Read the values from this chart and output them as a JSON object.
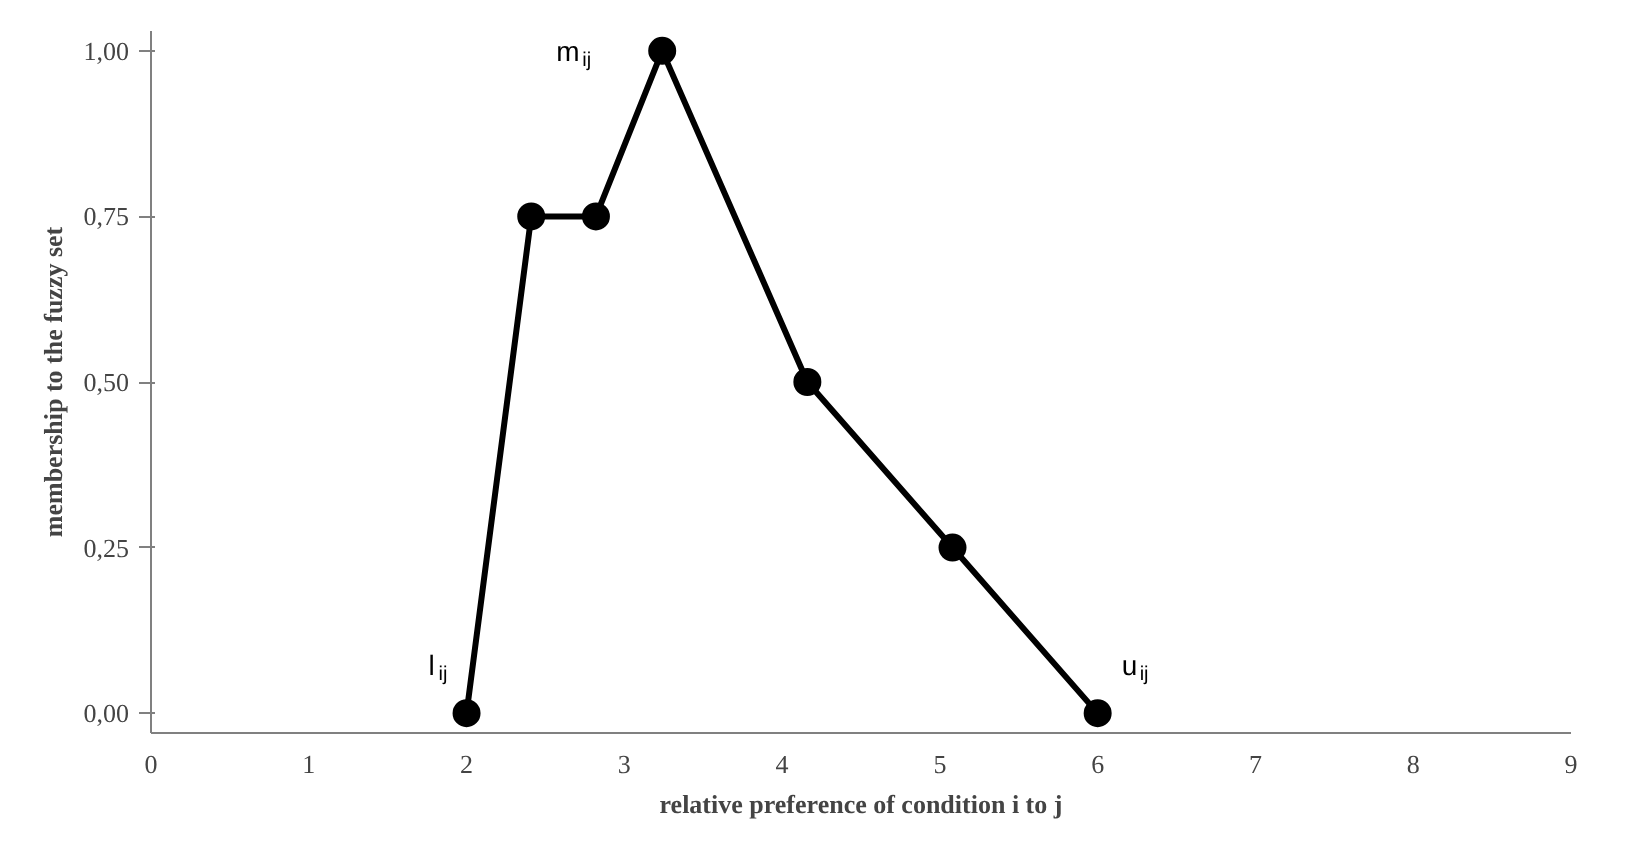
{
  "chart_data": {
    "type": "line",
    "xlabel": "relative preference of condition i to j",
    "ylabel": "membership to the fuzzy set",
    "x": [
      2,
      2.41,
      2.82,
      3.24,
      4.16,
      5.08,
      6
    ],
    "series": [
      {
        "color": "#000000",
        "values": [
          0,
          0.75,
          0.75,
          1,
          0.5,
          0.25,
          0
        ]
      }
    ],
    "xlim": [
      0,
      9
    ],
    "xticks": [
      0,
      1,
      2,
      3,
      4,
      5,
      6,
      7,
      8,
      9
    ],
    "ylim": [
      -0.03,
      1.03
    ],
    "yticks": [
      {
        "value": 0,
        "label": "0,00"
      },
      {
        "value": 0.25,
        "label": "0,25"
      },
      {
        "value": 0.5,
        "label": "0,50"
      },
      {
        "value": 0.75,
        "label": "0,75"
      },
      {
        "value": 1,
        "label": "1,00"
      }
    ],
    "annotations": [
      {
        "text": "l$_{ij}$",
        "x": 2,
        "y": 0
      },
      {
        "text": "m$_{ij}$",
        "x": 3.24,
        "y": 1
      },
      {
        "text": "u$_{ij}$",
        "x": 6,
        "y": 0
      }
    ],
    "marker": "circle",
    "line_style": "solid"
  }
}
